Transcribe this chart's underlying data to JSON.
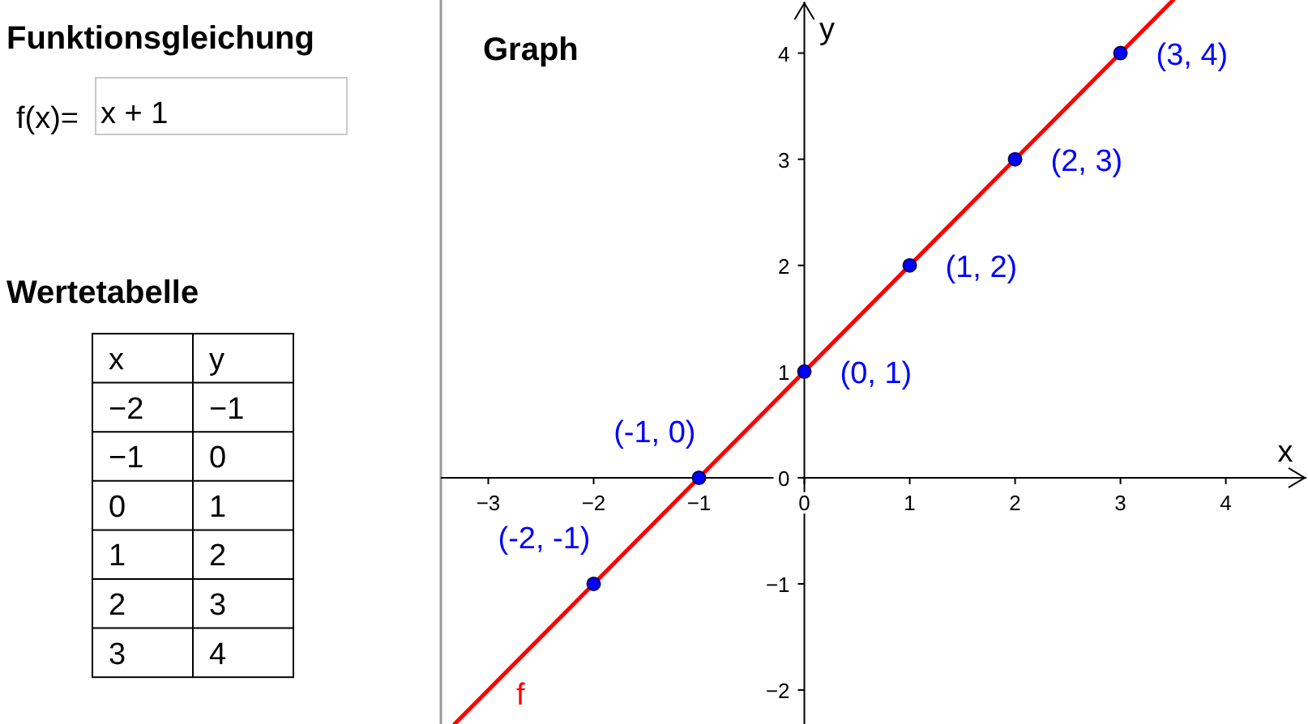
{
  "chart_data": {
    "type": "line",
    "title": "Graph",
    "xlabel": "x",
    "ylabel": "y",
    "annotations": [
      "Funktionsgleichung",
      "f(x)=",
      "x + 1",
      "Wertetabelle",
      "−2",
      "−1",
      "−1",
      "0",
      "0",
      "1",
      "1",
      "2",
      "2",
      "3",
      "3",
      "4"
    ],
    "xlim": [
      -3.45,
      4.78
    ],
    "ylim": [
      -2.32,
      4.5
    ],
    "xticks": [
      -3,
      -2,
      -1,
      0,
      1,
      2,
      3,
      4
    ],
    "yticks": [
      -2,
      -1,
      0,
      1,
      2,
      3,
      4
    ],
    "grid": false,
    "legend": false,
    "series": [
      {
        "name": "f",
        "color": "#ff0000",
        "x": [
          -3.32,
          3.5
        ],
        "values": [
          -2.32,
          4.5
        ],
        "line_style": "solid",
        "marker": "none"
      },
      {
        "type": "scatter",
        "color": "#0000ff",
        "x": [
          -2,
          -1,
          0,
          1,
          2,
          3
        ],
        "values": [
          -1,
          0,
          1,
          2,
          3,
          4
        ],
        "value_labels": [
          "(-2, -1)",
          "(-1, 0)",
          "(0, 1)",
          "(1, 2)",
          "(2, 3)",
          "(3, 4)"
        ],
        "marker": "circle"
      }
    ]
  }
}
